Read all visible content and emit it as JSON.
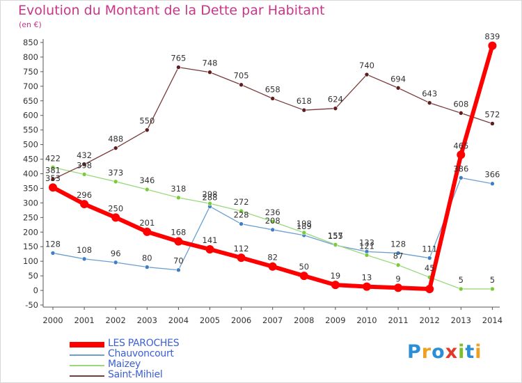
{
  "title": "Evolution du Montant de la Dette par Habitant",
  "unit": "(en €)",
  "logo": {
    "text": "Proxiti",
    "letters": [
      {
        "ch": "P",
        "color": "#2a8fd6"
      },
      {
        "ch": "r",
        "color": "#f0a020"
      },
      {
        "ch": "o",
        "color": "#2a8fd6"
      },
      {
        "ch": "x",
        "color": "#e03a2a"
      },
      {
        "ch": "i",
        "color": "#7cbf2a"
      },
      {
        "ch": "t",
        "color": "#2a8fd6"
      },
      {
        "ch": "i",
        "color": "#f0a020"
      }
    ]
  },
  "chart_data": {
    "type": "line",
    "title": "Evolution du Montant de la Dette par Habitant",
    "ylabel": "(en €)",
    "xlabel": "",
    "x": [
      "2000",
      "2001",
      "2002",
      "2003",
      "2004",
      "2005",
      "2006",
      "2007",
      "2008",
      "2009",
      "2010",
      "2011",
      "2012",
      "2013",
      "2014"
    ],
    "ylim": [
      -50,
      850
    ],
    "yticks": [
      -50,
      0,
      50,
      100,
      150,
      200,
      250,
      300,
      350,
      400,
      450,
      500,
      550,
      600,
      650,
      700,
      750,
      800,
      850
    ],
    "grid": false,
    "legend_position": "bottom-left",
    "series": [
      {
        "name": "LES PAROCHES",
        "color": "#ff0000",
        "point_color": "#ff0000",
        "width": 6,
        "values": [
          353,
          296,
          250,
          201,
          168,
          141,
          112,
          82,
          50,
          19,
          13,
          9,
          5,
          465,
          839
        ],
        "labels": [
          "353",
          "296",
          "250",
          "201",
          "168",
          "141",
          "112",
          "82",
          "50",
          "19",
          "13",
          "9",
          "",
          "465",
          "839"
        ]
      },
      {
        "name": "Chauvoncourt",
        "color": "#6a9fd0",
        "point_color": "#3f7fc6",
        "width": 1.3,
        "values": [
          128,
          108,
          96,
          80,
          70,
          288,
          228,
          208,
          189,
          155,
          133,
          128,
          111,
          386,
          366
        ],
        "labels": [
          "128",
          "108",
          "96",
          "80",
          "70",
          "288",
          "228",
          "208",
          "189",
          "155",
          "133",
          "128",
          "111",
          "386",
          "366"
        ]
      },
      {
        "name": "Maizey",
        "color": "#99d97a",
        "point_color": "#7acb3a",
        "width": 1.3,
        "values": [
          422,
          398,
          373,
          346,
          318,
          298,
          272,
          236,
          198,
          157,
          121,
          87,
          45,
          5,
          5
        ],
        "labels": [
          "422",
          "398",
          "373",
          "346",
          "318",
          "298",
          "272",
          "236",
          "198",
          "157",
          "121",
          "87",
          "45",
          "5",
          "5"
        ]
      },
      {
        "name": "Saint-Mihiel",
        "color": "#7a3a3a",
        "point_color": "#5e1e1e",
        "width": 1.3,
        "values": [
          381,
          432,
          488,
          550,
          765,
          748,
          705,
          658,
          618,
          624,
          740,
          694,
          643,
          608,
          572
        ],
        "labels": [
          "381",
          "432",
          "488",
          "550",
          "765",
          "748",
          "705",
          "658",
          "618",
          "624",
          "740",
          "694",
          "643",
          "608",
          "572"
        ]
      }
    ]
  }
}
